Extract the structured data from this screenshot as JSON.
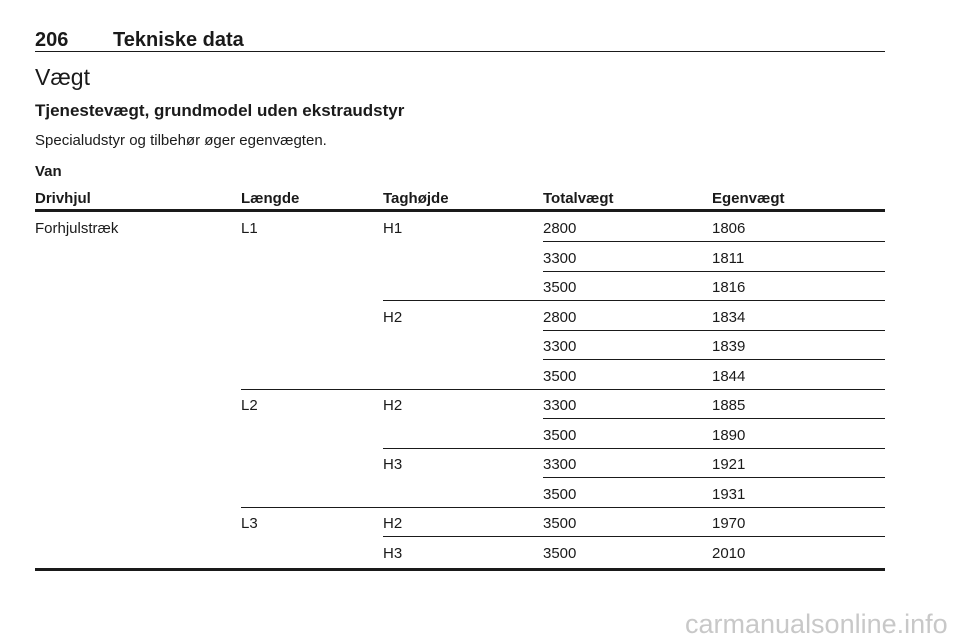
{
  "header": {
    "page_number": "206",
    "title": "Tekniske data"
  },
  "section_title": "Vægt",
  "subsection_title": "Tjenestevægt, grundmodel uden ekstraudstyr",
  "note": "Specialudstyr og tilbehør øger egenvægten.",
  "table": {
    "caption": "Van",
    "columns": [
      "Drivhjul",
      "Længde",
      "Taghøjde",
      "Totalvægt",
      "Egenvægt"
    ],
    "rows": [
      [
        "Forhjulstræk",
        "L1",
        "H1",
        2800,
        1806
      ],
      [
        null,
        null,
        null,
        3300,
        1811
      ],
      [
        null,
        null,
        null,
        3500,
        1816
      ],
      [
        null,
        null,
        "H2",
        2800,
        1834
      ],
      [
        null,
        null,
        null,
        3300,
        1839
      ],
      [
        null,
        null,
        null,
        3500,
        1844
      ],
      [
        null,
        "L2",
        "H2",
        3300,
        1885
      ],
      [
        null,
        null,
        null,
        3500,
        1890
      ],
      [
        null,
        null,
        "H3",
        3300,
        1921
      ],
      [
        null,
        null,
        null,
        3500,
        1931
      ],
      [
        null,
        "L3",
        "H2",
        3500,
        1970
      ],
      [
        null,
        null,
        "H3",
        3500,
        2010
      ]
    ]
  },
  "watermark": "carmanualsonline.info"
}
